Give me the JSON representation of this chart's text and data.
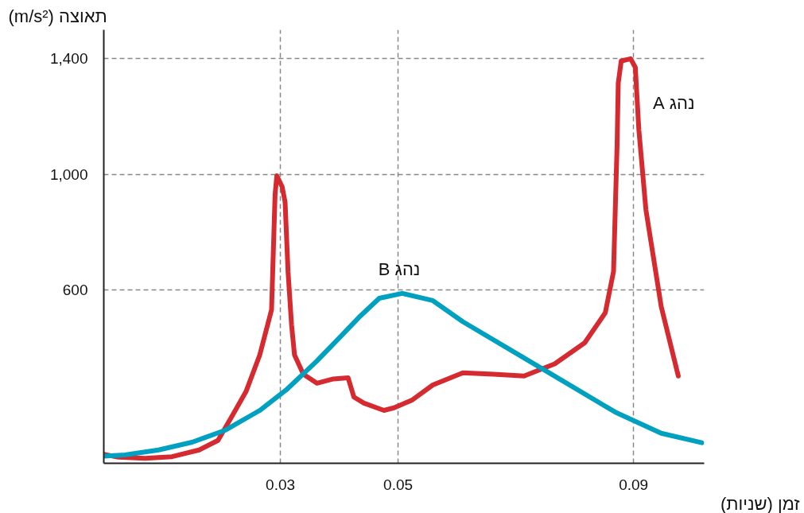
{
  "chart_data": {
    "type": "line",
    "ylabel": "תאוצה (m/s²)",
    "xlabel": "זמן (שניות)",
    "xlim": [
      0,
      0.102
    ],
    "ylim": [
      0,
      1500
    ],
    "xticks": [
      0.03,
      0.05,
      0.09
    ],
    "yticks": [
      {
        "value": 600,
        "label": "600"
      },
      {
        "value": 1000,
        "label": "1,000"
      },
      {
        "value": 1400,
        "label": "1,400"
      }
    ],
    "grid": true,
    "marker": "none",
    "line_style": "solid",
    "series": [
      {
        "name": "נהג A",
        "color": "#d42a30",
        "x": [
          0,
          0.0025,
          0.007,
          0.0116,
          0.0162,
          0.0194,
          0.0219,
          0.0242,
          0.0265,
          0.0285,
          0.0291,
          0.0294,
          0.0303,
          0.0308,
          0.0313,
          0.0319,
          0.0324,
          0.0339,
          0.0362,
          0.039,
          0.0415,
          0.0425,
          0.0442,
          0.0476,
          0.0493,
          0.0524,
          0.0559,
          0.061,
          0.0662,
          0.0714,
          0.0766,
          0.0817,
          0.0852,
          0.0866,
          0.0872,
          0.0874,
          0.0879,
          0.0895,
          0.0903,
          0.0909,
          0.0921,
          0.0947,
          0.0976
        ],
        "values": [
          31,
          21,
          17,
          23,
          46,
          79,
          167,
          250,
          375,
          531,
          931,
          995,
          957,
          904,
          664,
          479,
          375,
          308,
          277,
          292,
          296,
          229,
          208,
          183,
          192,
          219,
          271,
          313,
          308,
          302,
          344,
          417,
          521,
          664,
          1100,
          1316,
          1392,
          1400,
          1370,
          1154,
          877,
          542,
          302
        ]
      },
      {
        "name": "נהג B",
        "color": "#00a0c0",
        "x": [
          0,
          0.0036,
          0.0093,
          0.015,
          0.0207,
          0.0265,
          0.031,
          0.0362,
          0.0402,
          0.0436,
          0.0468,
          0.0507,
          0.0559,
          0.061,
          0.0697,
          0.0783,
          0.0869,
          0.0947,
          0.1016
        ],
        "values": [
          25,
          29,
          46,
          73,
          115,
          183,
          254,
          354,
          438,
          510,
          571,
          588,
          563,
          490,
          385,
          281,
          177,
          104,
          71
        ]
      }
    ]
  }
}
